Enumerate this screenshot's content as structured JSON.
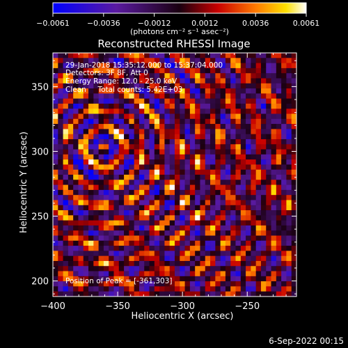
{
  "chart_data": {
    "type": "heatmap",
    "title": "Reconstructed RHESSI Image",
    "xlabel": "Heliocentric X (arcsec)",
    "ylabel": "Heliocentric Y (arcsec)",
    "xlim": [
      -400,
      -212
    ],
    "ylim": [
      188,
      376
    ],
    "xticks": [
      -400,
      -350,
      -300,
      -250
    ],
    "yticks": [
      200,
      250,
      300,
      350
    ],
    "xtick_labels": [
      "−400",
      "−350",
      "−300",
      "−250"
    ],
    "ytick_labels": [
      "200",
      "250",
      "300",
      "350"
    ],
    "grid": false,
    "colorbar": {
      "min": -0.0061,
      "max": 0.0061,
      "tick_labels": [
        "−0.0061",
        "−0.0036",
        "−0.0012",
        "0.0012",
        "0.0036",
        "0.0061"
      ],
      "unit_label": "(photons cm⁻² s⁻¹ asec⁻²)",
      "colormap": "blue-violet-red-yellow-white"
    },
    "annotations": [
      "29-Jan-2018 15:35:12.000 to 15:37:04.000",
      "Detectors: 3F 8F, Att 0",
      "Energy Range: 12.0 - 25.0 keV",
      "Clean     Total counts: 5.42E+03"
    ],
    "peak_label": "Position of Peak = [-361,303]",
    "peak_position": [
      -361,
      303
    ],
    "grid_size": [
      48,
      48
    ]
  },
  "footer_date": "6-Sep-2022 00:15"
}
